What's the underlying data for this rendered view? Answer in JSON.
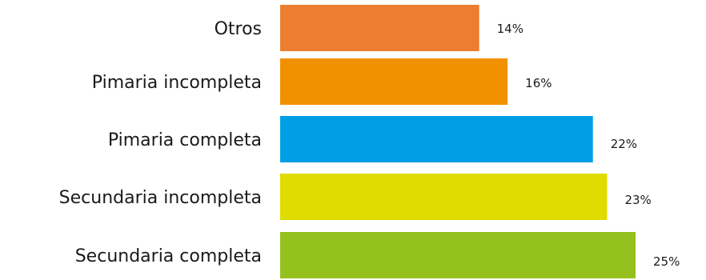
{
  "chart_data": {
    "type": "bar",
    "orientation": "horizontal",
    "categories": [
      "Otros",
      "Pimaria incompleta",
      "Pimaria completa",
      "Secundaria incompleta",
      "Secundaria completa"
    ],
    "values": [
      14,
      16,
      22,
      23,
      25
    ],
    "value_labels": [
      "14%",
      "16%",
      "22%",
      "23%",
      "25%"
    ],
    "colors": [
      "#ED7D31",
      "#F29100",
      "#009FE3",
      "#DEDC00",
      "#95C11F"
    ],
    "xlim": [
      0,
      25
    ],
    "grid": false,
    "legend": "none"
  }
}
